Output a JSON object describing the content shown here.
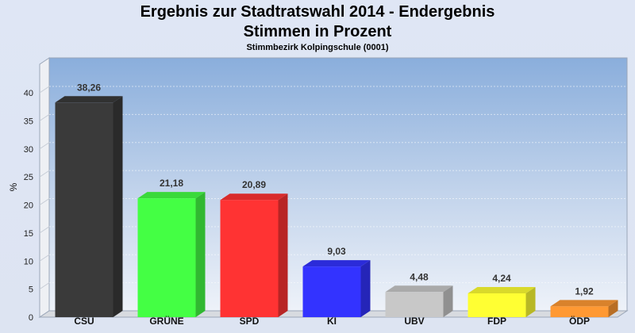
{
  "header": {
    "title_line1": "Ergebnis zur Stadtratswahl 2014 - Endergebnis",
    "title_line2": "Stimmen in Prozent",
    "subtitle": "Stimmbezirk Kolpingschule (0001)"
  },
  "chart_data": {
    "type": "bar",
    "title": "Ergebnis zur Stadtratswahl 2014 - Endergebnis",
    "subtitle": "Stimmen in Prozent",
    "caption": "Stimmbezirk Kolpingschule (0001)",
    "xlabel": "",
    "ylabel": "%",
    "ylim": [
      0,
      40
    ],
    "yticks": [
      0,
      5,
      10,
      15,
      20,
      25,
      30,
      35,
      40
    ],
    "grid": true,
    "categories": [
      "CSU",
      "GRÜNE",
      "SPD",
      "KI",
      "UBV",
      "FDP",
      "ÖDP"
    ],
    "values": [
      38.26,
      21.18,
      20.89,
      9.03,
      4.48,
      4.24,
      1.92
    ],
    "value_labels": [
      "38,26",
      "21,18",
      "20,89",
      "9,03",
      "4,48",
      "4,24",
      "1,92"
    ],
    "colors": [
      "#3a3a3a",
      "#44ff44",
      "#ff3333",
      "#3333ff",
      "#c8c8c8",
      "#ffff33",
      "#ff9933"
    ]
  }
}
